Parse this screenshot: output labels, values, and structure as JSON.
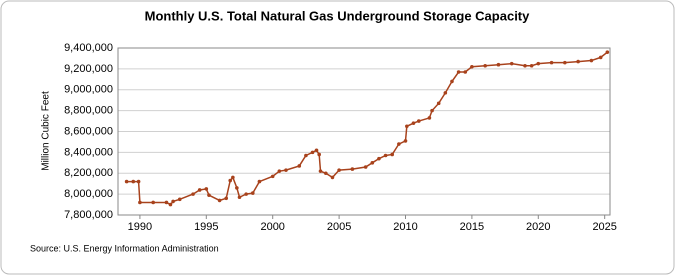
{
  "chart_data": {
    "type": "line",
    "title": "Monthly U.S. Total Natural Gas Underground Storage Capacity",
    "y_label": "Million Cubic Feet",
    "source": "Source: U.S. Energy Information Administration",
    "x": [
      1989,
      1989.5,
      1989.9,
      1990,
      1991,
      1992,
      1992.3,
      1992.5,
      1993,
      1994,
      1994.5,
      1995,
      1995.2,
      1996,
      1996.5,
      1996.8,
      1997,
      1997.3,
      1997.5,
      1998,
      1998.5,
      1999,
      2000,
      2000.5,
      2001,
      2002,
      2002.5,
      2003,
      2003.3,
      2003.5,
      2003.6,
      2004,
      2004.5,
      2005,
      2006,
      2007,
      2007.5,
      2008,
      2008.5,
      2009,
      2009.5,
      2010,
      2010.1,
      2010.6,
      2011,
      2011.8,
      2012,
      2012.5,
      2013,
      2013.5,
      2014,
      2014.5,
      2015,
      2016,
      2017,
      2018,
      2019,
      2019.5,
      2020,
      2021,
      2022,
      2023,
      2024,
      2024.7,
      2025.2
    ],
    "series": [
      {
        "name": "U.S. Total Natural Gas Underground Storage Capacity",
        "color": "#a8421c",
        "values": [
          8120000,
          8120000,
          8120000,
          7920000,
          7920000,
          7920000,
          7900000,
          7930000,
          7950000,
          8000000,
          8040000,
          8050000,
          7990000,
          7940000,
          7960000,
          8130000,
          8160000,
          8060000,
          7970000,
          8000000,
          8010000,
          8120000,
          8170000,
          8220000,
          8230000,
          8270000,
          8370000,
          8400000,
          8420000,
          8380000,
          8220000,
          8200000,
          8160000,
          8230000,
          8240000,
          8260000,
          8300000,
          8340000,
          8370000,
          8380000,
          8480000,
          8510000,
          8650000,
          8680000,
          8700000,
          8730000,
          8800000,
          8870000,
          8970000,
          9080000,
          9170000,
          9170000,
          9220000,
          9230000,
          9240000,
          9250000,
          9230000,
          9230000,
          9250000,
          9260000,
          9260000,
          9270000,
          9280000,
          9310000,
          9360000
        ]
      }
    ],
    "xlim": [
      1988.35,
      2025.4
    ],
    "xticks": [
      1990,
      1995,
      2000,
      2005,
      2010,
      2015,
      2020,
      2025
    ],
    "ylim": [
      7800000,
      9400000
    ],
    "yticks": [
      {
        "value": 7800000,
        "label": "7,800,000"
      },
      {
        "value": 8000000,
        "label": "8,000,000"
      },
      {
        "value": 8200000,
        "label": "8,200,000"
      },
      {
        "value": 8400000,
        "label": "8,400,000"
      },
      {
        "value": 8600000,
        "label": "8,600,000"
      },
      {
        "value": 8800000,
        "label": "8,800,000"
      },
      {
        "value": 9000000,
        "label": "9,000,000"
      },
      {
        "value": 9200000,
        "label": "9,200,000"
      },
      {
        "value": 9400000,
        "label": "9,400,000"
      }
    ],
    "grid": true
  }
}
